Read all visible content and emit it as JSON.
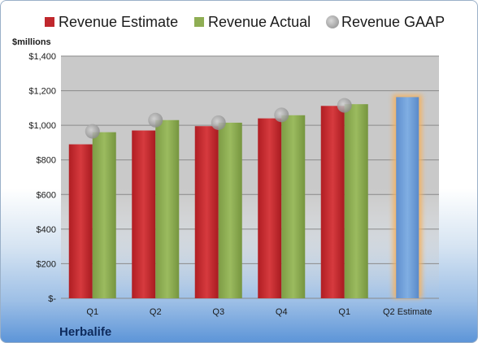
{
  "chart_data": {
    "type": "bar",
    "ylabel": "$millions",
    "ylim": [
      0,
      1400
    ],
    "ytick_values": [
      0,
      200,
      400,
      600,
      800,
      1000,
      1200,
      1400
    ],
    "ytick_labels": [
      "$-",
      "$200",
      "$400",
      "$600",
      "$800",
      "$1,000",
      "$1,200",
      "$1,400"
    ],
    "categories": [
      "Q1",
      "Q2",
      "Q3",
      "Q4",
      "Q1",
      "Q2 Estimate"
    ],
    "series": [
      {
        "name": "Revenue Estimate",
        "kind": "bar",
        "color": "#c0282d",
        "values": [
          890,
          970,
          995,
          1040,
          1112,
          null
        ]
      },
      {
        "name": "Revenue Actual",
        "kind": "bar",
        "color": "#8fae54",
        "values": [
          960,
          1030,
          1015,
          1058,
          1122,
          null
        ]
      },
      {
        "name": "Revenue GAAP",
        "kind": "marker",
        "color": "#a8a8a8",
        "values": [
          965,
          1030,
          1015,
          1060,
          1115,
          null
        ]
      },
      {
        "name": "Q2 Estimate",
        "kind": "highlight-bar",
        "color": "#6f9ed8",
        "glow": "#f3b264",
        "values": [
          null,
          null,
          null,
          null,
          null,
          1163
        ]
      }
    ],
    "legend_position": "top",
    "grid": true,
    "plot_background": "#c8c8c8"
  },
  "footer": {
    "company": "Herbalife"
  }
}
